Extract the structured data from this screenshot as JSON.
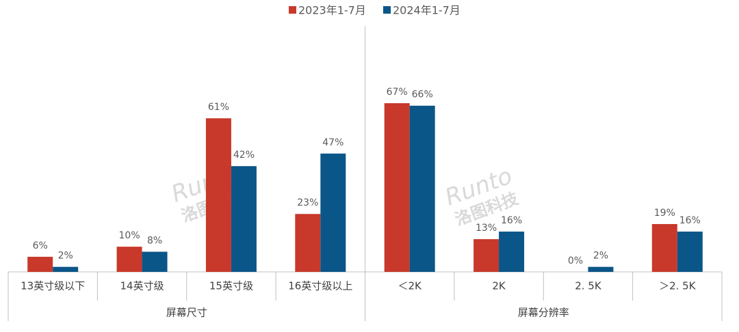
{
  "chart_data": {
    "type": "bar",
    "groups": [
      {
        "name": "屏幕尺寸",
        "categories": [
          "13英寸级以下",
          "14英寸级",
          "15英寸级",
          "16英寸级以上"
        ]
      },
      {
        "name": "屏幕分辨率",
        "categories": [
          "＜2K",
          "2K",
          "2. 5K",
          "＞2. 5K"
        ]
      }
    ],
    "series": [
      {
        "name": "2023年1-7月",
        "color": "#c8392b",
        "values": [
          6,
          10,
          61,
          23,
          67,
          13,
          0,
          19
        ],
        "value_labels": [
          "6%",
          "10%",
          "61%",
          "23%",
          "67%",
          "13%",
          "0%",
          "19%"
        ]
      },
      {
        "name": "2024年1-7月",
        "color": "#0b5688",
        "values": [
          2,
          8,
          42,
          47,
          66,
          16,
          2,
          16
        ],
        "value_labels": [
          "2%",
          "8%",
          "42%",
          "47%",
          "66%",
          "16%",
          "2%",
          "16%"
        ]
      }
    ],
    "ylim": [
      0,
      70
    ],
    "watermark": {
      "brand": "Runto",
      "name": "洛图科技"
    }
  }
}
